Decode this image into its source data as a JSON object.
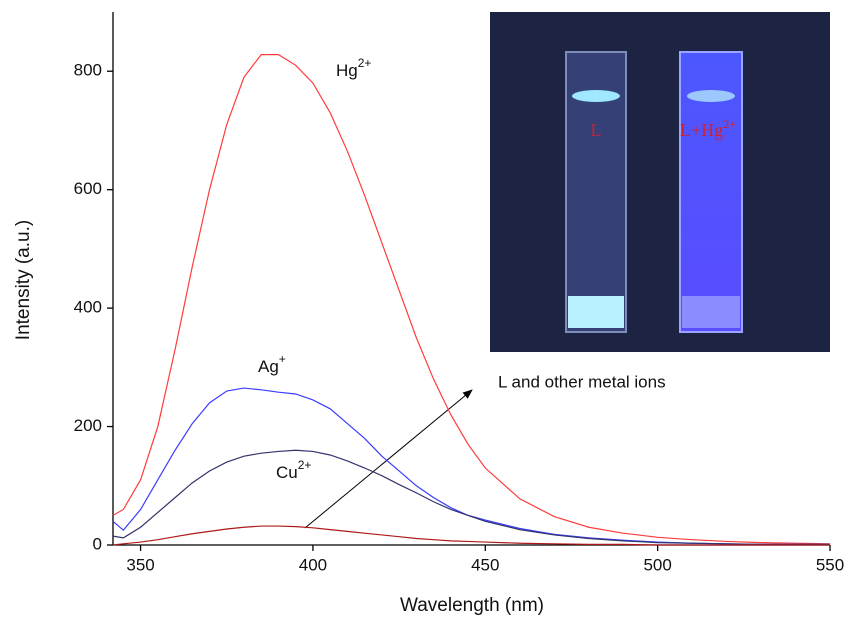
{
  "chart_data": {
    "type": "line",
    "xlabel": "Wavelength (nm)",
    "ylabel": "Intensity (a.u.)",
    "x": [
      342,
      345,
      350,
      355,
      360,
      365,
      370,
      375,
      380,
      385,
      390,
      395,
      400,
      405,
      410,
      415,
      420,
      425,
      430,
      435,
      440,
      445,
      450,
      460,
      470,
      480,
      490,
      500,
      510,
      520,
      530,
      540,
      550
    ],
    "xlim": [
      342,
      550
    ],
    "xticks": [
      350,
      400,
      450,
      500,
      550
    ],
    "ylim": [
      0,
      900
    ],
    "yticks": [
      0,
      200,
      400,
      600,
      800
    ],
    "series": [
      {
        "name": "Hg",
        "superscript": "2+",
        "color": "#ff3b3b",
        "values": [
          50,
          60,
          110,
          200,
          330,
          470,
          600,
          710,
          790,
          828,
          828,
          810,
          780,
          730,
          665,
          590,
          510,
          430,
          350,
          280,
          220,
          170,
          130,
          78,
          48,
          30,
          20,
          13,
          9,
          6,
          4,
          3,
          2
        ]
      },
      {
        "name": "Ag",
        "superscript": "+",
        "color": "#3c3cff",
        "values": [
          40,
          25,
          60,
          110,
          160,
          205,
          240,
          260,
          265,
          262,
          258,
          255,
          245,
          230,
          205,
          180,
          150,
          125,
          100,
          80,
          63,
          50,
          42,
          28,
          18,
          12,
          8,
          5,
          3,
          2,
          1,
          1,
          1
        ]
      },
      {
        "name": "Cu",
        "superscript": "2+",
        "color": "#33336e",
        "values": [
          15,
          12,
          30,
          55,
          80,
          105,
          125,
          140,
          150,
          155,
          158,
          160,
          158,
          152,
          142,
          130,
          117,
          102,
          88,
          73,
          60,
          50,
          40,
          26,
          17,
          11,
          7,
          4,
          3,
          2,
          1,
          1,
          1
        ]
      },
      {
        "color": "#b01818",
        "values": [
          0,
          2,
          5,
          9,
          14,
          19,
          23,
          27,
          30,
          32,
          32,
          31,
          29,
          26,
          23,
          20,
          17,
          14,
          11,
          9,
          7,
          6,
          5,
          3,
          2,
          1,
          1,
          0,
          0,
          0,
          0,
          0,
          0
        ]
      }
    ],
    "annotation": "L and other metal ions"
  },
  "inset": {
    "left_label": "L",
    "right_label": "L+Hg",
    "right_label_sup": "2+"
  }
}
